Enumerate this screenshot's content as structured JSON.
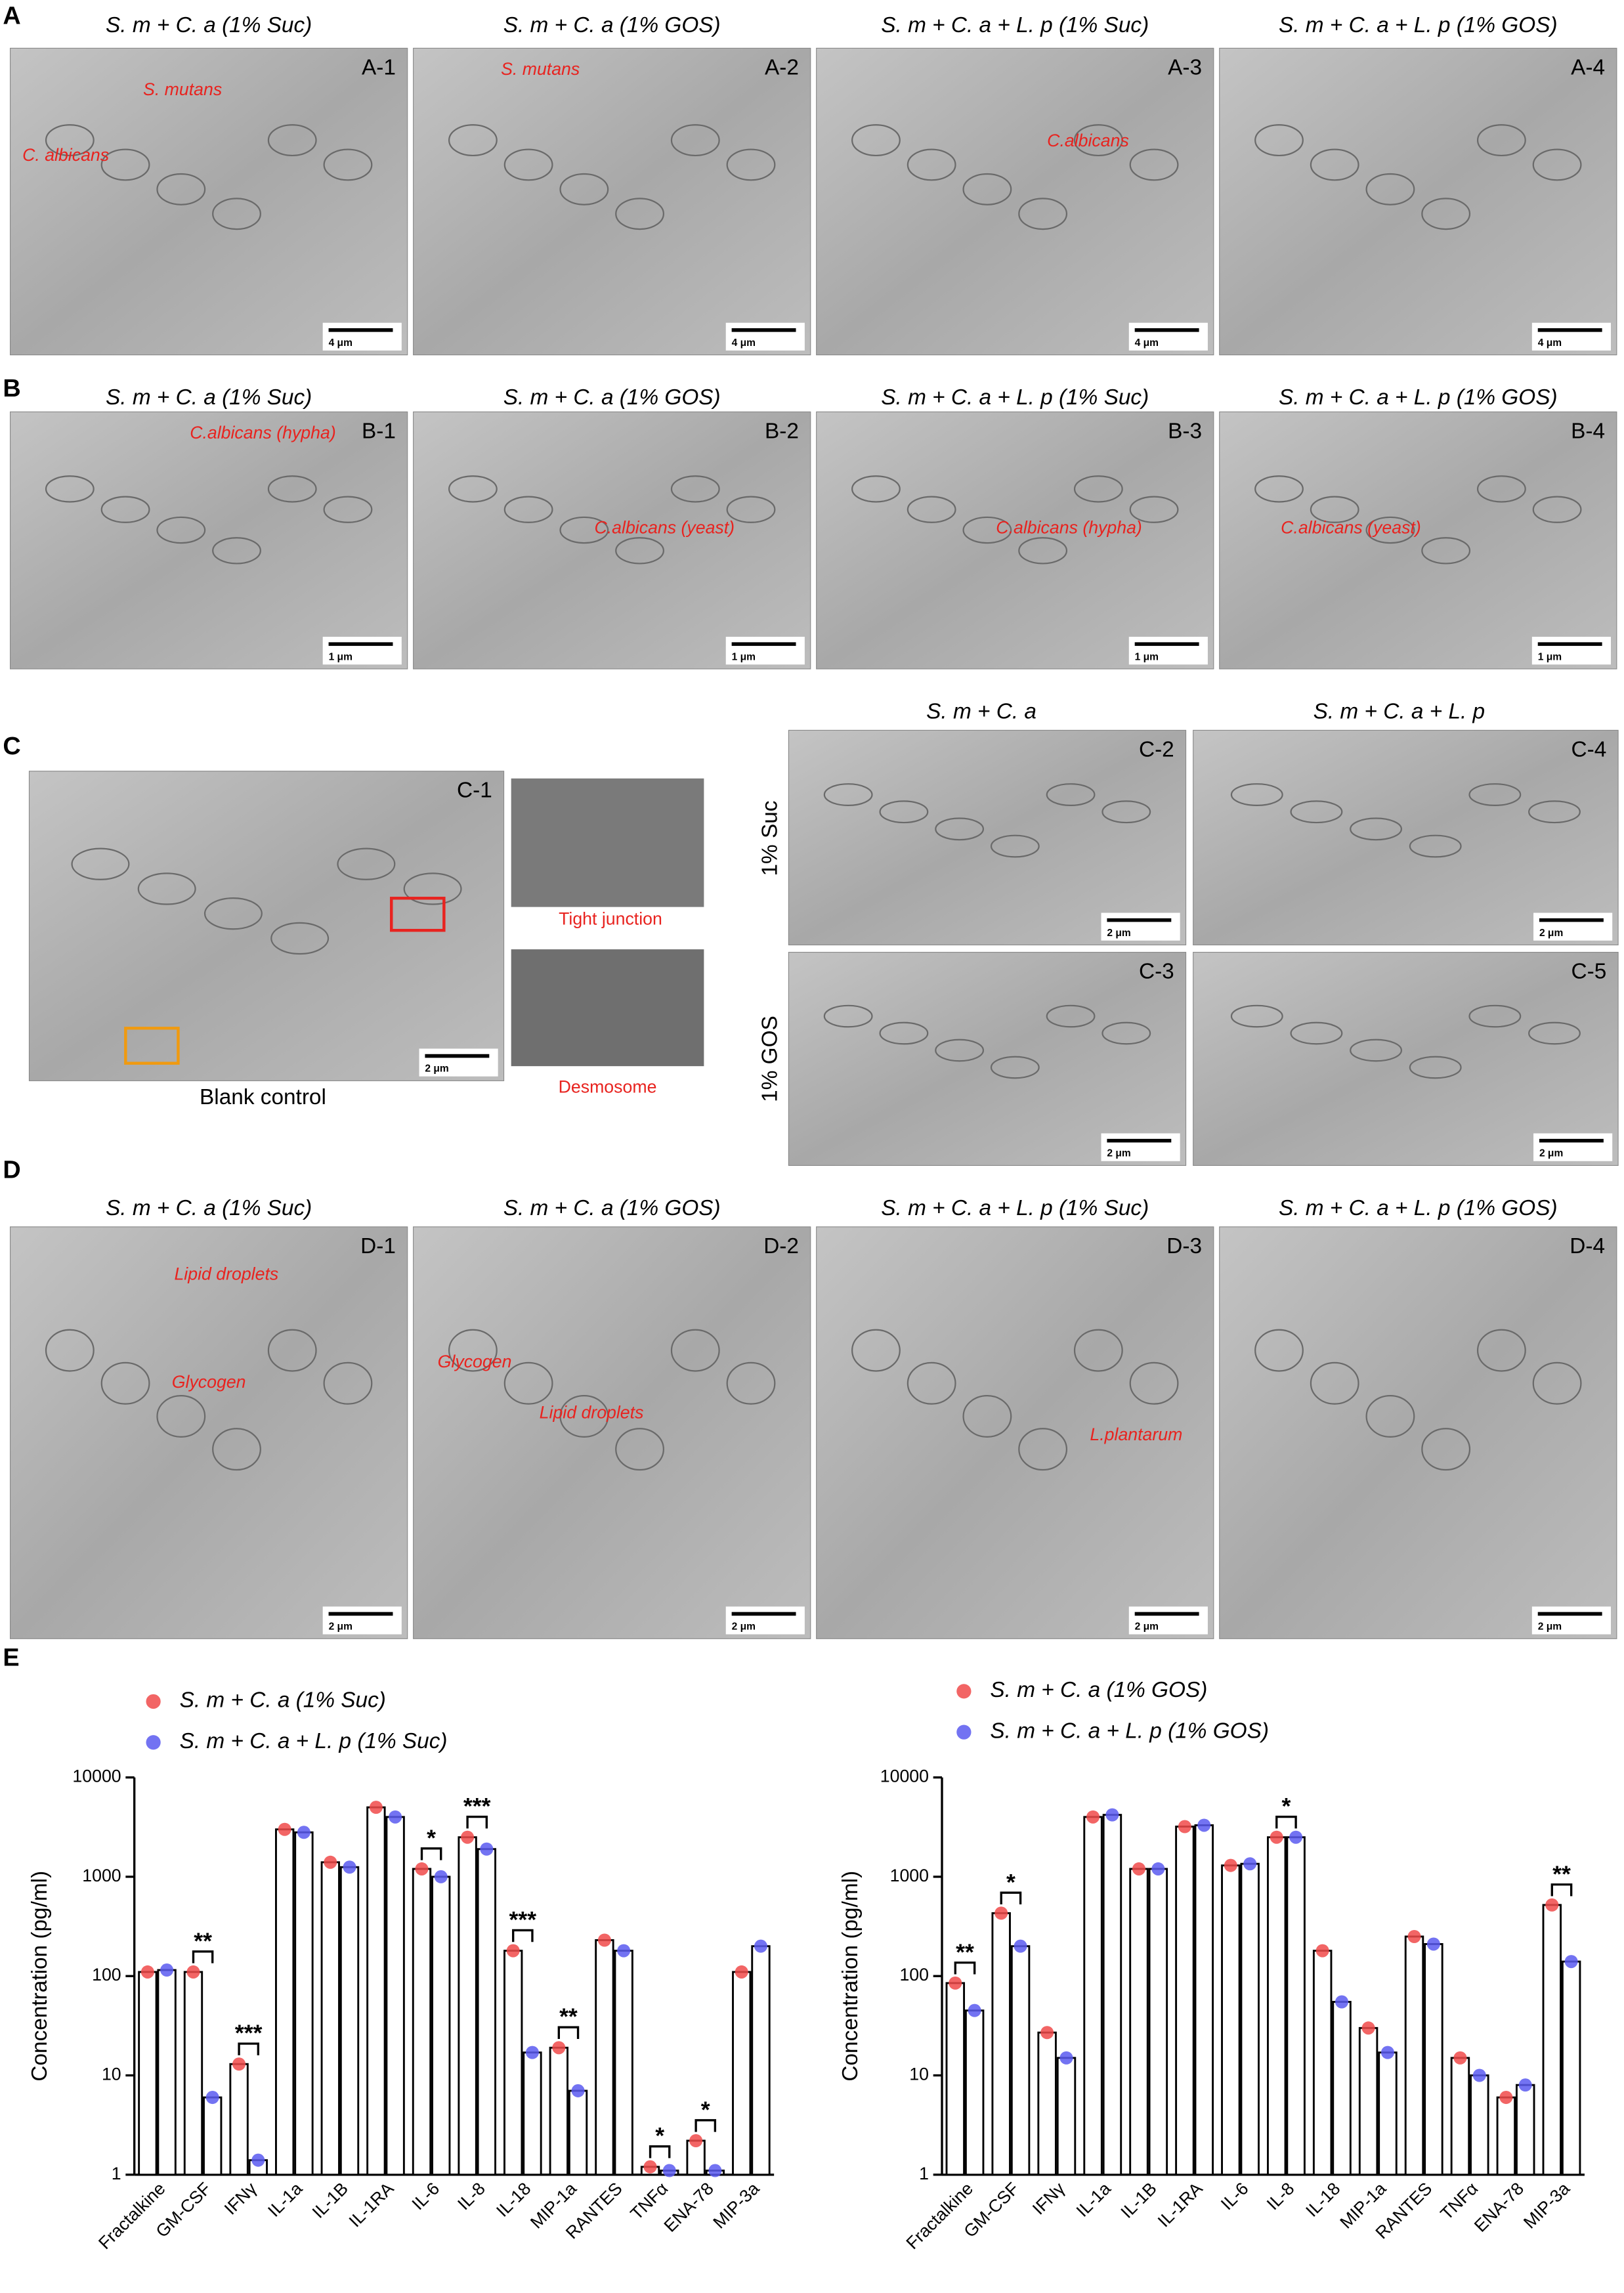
{
  "panel_a": {
    "letter": "A",
    "titles": [
      "S. m + C. a (1% Suc)",
      "S. m + C. a (1% GOS)",
      "S. m + C. a + L. p (1% Suc)",
      "S. m + C. a + L. p (1% GOS)"
    ],
    "images": [
      {
        "label": "A-1",
        "annotations": [
          "S. mutans",
          "C. albicans"
        ],
        "scale_bar": "4 μm"
      },
      {
        "label": "A-2",
        "annotations": [
          "S. mutans"
        ],
        "scale_bar": "4 μm"
      },
      {
        "label": "A-3",
        "annotations": [
          "C.albicans"
        ],
        "scale_bar": "4 μm"
      },
      {
        "label": "A-4",
        "annotations": [],
        "scale_bar": "4 μm"
      }
    ]
  },
  "panel_b": {
    "letter": "B",
    "titles": [
      "S. m + C. a (1% Suc)",
      "S. m + C. a (1% GOS)",
      "S. m + C. a + L. p (1% Suc)",
      "S. m + C. a + L. p (1% GOS)"
    ],
    "images": [
      {
        "label": "B-1",
        "annotations": [
          "C.albicans (hypha)"
        ],
        "scale_bar": "1 μm"
      },
      {
        "label": "B-2",
        "annotations": [
          "C.albicans (yeast)"
        ],
        "scale_bar": "1 μm"
      },
      {
        "label": "B-3",
        "annotations": [
          "C.albicans (hypha)"
        ],
        "scale_bar": "1 μm"
      },
      {
        "label": "B-4",
        "annotations": [
          "C.albicans (yeast)"
        ],
        "scale_bar": "1 μm"
      }
    ]
  },
  "panel_c": {
    "letter": "C",
    "blank": {
      "label": "C-1",
      "annotations": [
        "Tight junction",
        "Desmosome"
      ],
      "caption": "Blank control",
      "scale_bar": "2 μm"
    },
    "columns": [
      "S. m + C. a",
      "S. m + C. a + L. p"
    ],
    "rows": [
      "1% Suc",
      "1% GOS"
    ],
    "images": [
      {
        "label": "C-2",
        "scale_bar": "2 μm"
      },
      {
        "label": "C-4",
        "scale_bar": "2 μm"
      },
      {
        "label": "C-3",
        "scale_bar": "2 μm"
      },
      {
        "label": "C-5",
        "scale_bar": "2 μm"
      }
    ]
  },
  "panel_d": {
    "letter": "D",
    "titles": [
      "S. m + C. a (1% Suc)",
      "S. m + C. a (1% GOS)",
      "S. m + C. a + L. p (1% Suc)",
      "S. m + C. a + L. p (1% GOS)"
    ],
    "images": [
      {
        "label": "D-1",
        "annotations": [
          "Lipid droplets",
          "Glycogen"
        ],
        "scale_bar": "2 μm"
      },
      {
        "label": "D-2",
        "annotations": [
          "Glycogen",
          "Lipid droplets"
        ],
        "scale_bar": "2 μm"
      },
      {
        "label": "D-3",
        "annotations": [
          "L.plantarum"
        ],
        "scale_bar": "2 μm"
      },
      {
        "label": "D-4",
        "annotations": [],
        "scale_bar": "2 μm"
      }
    ]
  },
  "panel_e_letter": "E",
  "chart_data": [
    {
      "type": "bar",
      "ylabel": "Concentration (pg/ml)",
      "log_scale": true,
      "categories": [
        "Fractalkine",
        "GM-CSF",
        "IFNγ",
        "IL-1a",
        "IL-1B",
        "IL-1RA",
        "IL-6",
        "IL-8",
        "IL-18",
        "MIP-1a",
        "RANTES",
        "TNFα",
        "ENA-78",
        "MIP-3a"
      ],
      "series": [
        {
          "name": "S. m + C. a (1% Suc)",
          "color": "#f04a4a",
          "values": [
            110,
            110,
            13,
            3000,
            1400,
            5000,
            1200,
            2500,
            180,
            19,
            230,
            1.2,
            2.2,
            110
          ]
        },
        {
          "name": "S. m + C. a + L. p (1% Suc)",
          "color": "#5a5af0",
          "values": [
            115,
            6,
            1.4,
            2800,
            1250,
            4000,
            1000,
            1900,
            17,
            7,
            180,
            1.1,
            1.1,
            200
          ]
        }
      ],
      "significance": [
        {
          "category": "GM-CSF",
          "label": "**"
        },
        {
          "category": "IFNγ",
          "label": "***"
        },
        {
          "category": "IL-6",
          "label": "*"
        },
        {
          "category": "IL-8",
          "label": "***"
        },
        {
          "category": "IL-18",
          "label": "***"
        },
        {
          "category": "MIP-1a",
          "label": "**"
        },
        {
          "category": "TNFα",
          "label": "*"
        },
        {
          "category": "ENA-78",
          "label": "*"
        }
      ],
      "ylim": [
        1,
        10000
      ],
      "yticks": [
        1,
        10,
        100,
        1000,
        10000
      ]
    },
    {
      "type": "bar",
      "ylabel": "Concentration (pg/ml)",
      "log_scale": true,
      "categories": [
        "Fractalkine",
        "GM-CSF",
        "IFNγ",
        "IL-1a",
        "IL-1B",
        "IL-1RA",
        "IL-6",
        "IL-8",
        "IL-18",
        "MIP-1a",
        "RANTES",
        "TNFα",
        "ENA-78",
        "MIP-3a"
      ],
      "series": [
        {
          "name": "S. m + C. a (1% GOS)",
          "color": "#f04a4a",
          "values": [
            85,
            430,
            27,
            4000,
            1200,
            3200,
            1300,
            2500,
            180,
            30,
            250,
            15,
            6,
            520
          ]
        },
        {
          "name": "S. m + C. a + L. p (1% GOS)",
          "color": "#5a5af0",
          "values": [
            45,
            200,
            15,
            4200,
            1200,
            3300,
            1350,
            2500,
            55,
            17,
            210,
            10,
            8,
            140
          ]
        }
      ],
      "significance": [
        {
          "category": "Fractalkine",
          "label": "**"
        },
        {
          "category": "GM-CSF",
          "label": "*"
        },
        {
          "category": "IL-8",
          "label": "*"
        },
        {
          "category": "MIP-3a",
          "label": "**"
        }
      ],
      "ylim": [
        1,
        10000
      ],
      "yticks": [
        1,
        10,
        100,
        1000,
        10000
      ]
    }
  ]
}
